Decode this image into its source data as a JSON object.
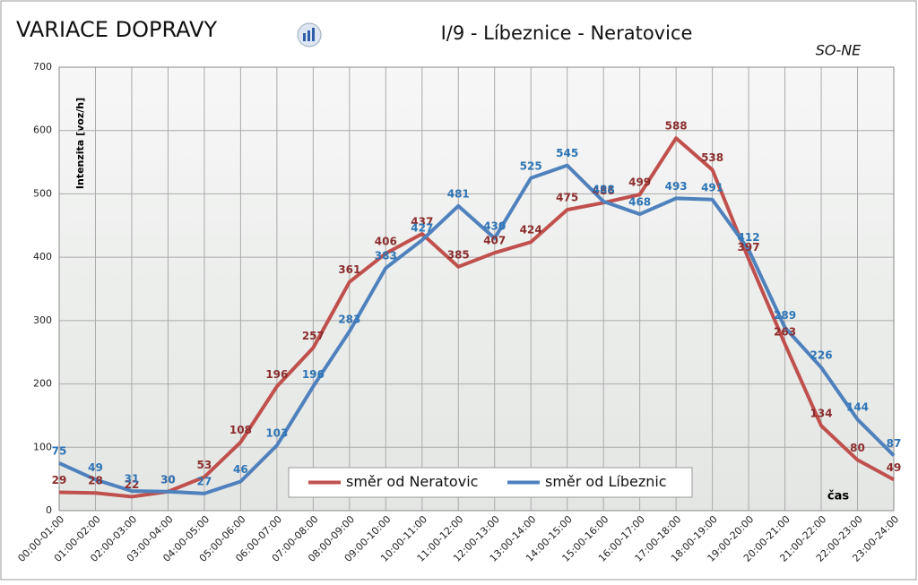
{
  "chart_data": {
    "type": "line",
    "title": "VARIACE DOPRAVY",
    "subtitle": "I/9 - Líbeznice - Neratovice",
    "annotation": "SO-NE",
    "y_label": "Intenzita  [voz/h]",
    "x_label": "čas",
    "categories": [
      "00:00-01:00",
      "01:00-02:00",
      "02:00-03:00",
      "03:00-04:00",
      "04:00-05:00",
      "05:00-06:00",
      "06:00-07:00",
      "07:00-08:00",
      "08:00-09:00",
      "09:00-10:00",
      "10:00-11:00",
      "11:00-12:00",
      "12:00-13:00",
      "13:00-14:00",
      "14:00-15:00",
      "15:00-16:00",
      "16:00-17:00",
      "17:00-18:00",
      "18:00-19:00",
      "19:00-20:00",
      "20:00-21:00",
      "21:00-22:00",
      "22:00-23:00",
      "23:00-24:00"
    ],
    "series": [
      {
        "name": "směr od Neratovic",
        "color": "#c0504d",
        "label_color": "#8b2d2d",
        "values": [
          29,
          28,
          22,
          30,
          53,
          108,
          196,
          257,
          361,
          406,
          437,
          385,
          407,
          424,
          475,
          486,
          499,
          588,
          538,
          397,
          263,
          134,
          80,
          49
        ]
      },
      {
        "name": "směr od Líbeznic",
        "color": "#4f81bd",
        "label_color": "#2e75b6",
        "values": [
          75,
          49,
          31,
          30,
          27,
          46,
          103,
          196,
          283,
          383,
          427,
          481,
          430,
          525,
          545,
          488,
          468,
          493,
          491,
          412,
          289,
          226,
          144,
          87
        ]
      }
    ],
    "ylim": [
      0,
      700
    ],
    "yticks": [
      0,
      100,
      200,
      300,
      400,
      500,
      600,
      700
    ],
    "grid": true,
    "legend": "lower center"
  }
}
